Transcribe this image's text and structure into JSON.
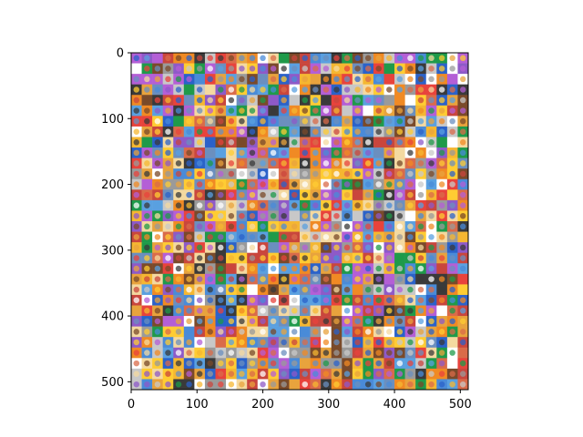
{
  "chart_data": {
    "type": "heatmap",
    "title": "",
    "xlabel": "",
    "ylabel": "",
    "xlim": [
      0,
      512
    ],
    "ylim": [
      512,
      0
    ],
    "grid": false,
    "grid_cells": 32,
    "x_ticks": [
      0,
      100,
      200,
      300,
      400,
      500
    ],
    "y_ticks": [
      0,
      100,
      200,
      300,
      400,
      500
    ],
    "x_tick_labels": [
      "0",
      "100",
      "200",
      "300",
      "400",
      "500"
    ],
    "y_tick_labels": [
      "0",
      "100",
      "200",
      "300",
      "400",
      "500"
    ],
    "palette": [
      "#ffcc33",
      "#f5b731",
      "#e8a33d",
      "#c9463d",
      "#e8433c",
      "#ffffff",
      "#2b62c9",
      "#4a8bd8",
      "#1f9a4a",
      "#6b8fbf",
      "#9a9a9a",
      "#c8c8c8",
      "#8e5ac8",
      "#b45fd6",
      "#f08a24",
      "#3a3a3a",
      "#7a4a2a",
      "#d96b4a",
      "#f4d9a0",
      "#5aa0e0"
    ]
  }
}
